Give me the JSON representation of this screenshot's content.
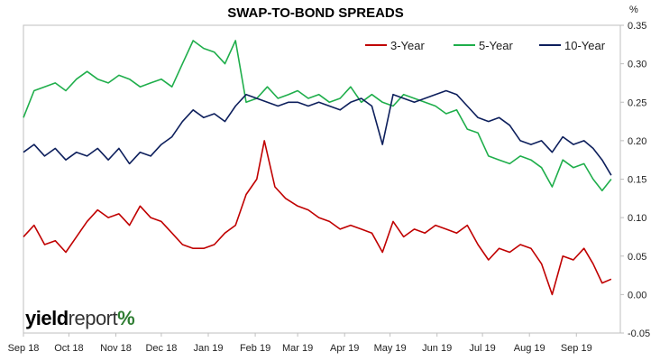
{
  "chart_data": {
    "type": "line",
    "title": "SWAP-TO-BOND SPREADS",
    "y_unit": "%",
    "ylim": [
      -0.05,
      0.35
    ],
    "yticks": [
      "0.35",
      "0.30",
      "0.25",
      "0.20",
      "0.15",
      "0.10",
      "0.05",
      "0.00",
      "-0.05"
    ],
    "xlim": [
      "2018-09-01",
      "2019-09-30"
    ],
    "xticks": [
      {
        "date": "2018-09-01",
        "label": "Sep 18"
      },
      {
        "date": "2018-10-01",
        "label": "Oct 18"
      },
      {
        "date": "2018-11-01",
        "label": "Nov 18"
      },
      {
        "date": "2018-12-01",
        "label": "Dec 18"
      },
      {
        "date": "2019-01-01",
        "label": "Jan 19"
      },
      {
        "date": "2019-02-01",
        "label": "Feb 19"
      },
      {
        "date": "2019-03-01",
        "label": "Mar 19"
      },
      {
        "date": "2019-04-01",
        "label": "Apr 19"
      },
      {
        "date": "2019-05-01",
        "label": "May 19"
      },
      {
        "date": "2019-06-01",
        "label": "Jun 19"
      },
      {
        "date": "2019-07-01",
        "label": "Jul 19"
      },
      {
        "date": "2019-08-01",
        "label": "Aug 19"
      },
      {
        "date": "2019-09-01",
        "label": "Sep 19"
      }
    ],
    "grid": false,
    "legend": "top-right",
    "series": [
      {
        "name": "3-Year",
        "color": "#c00000",
        "points": [
          [
            "2018-09-01",
            0.075
          ],
          [
            "2018-09-08",
            0.09
          ],
          [
            "2018-09-15",
            0.065
          ],
          [
            "2018-09-22",
            0.07
          ],
          [
            "2018-09-29",
            0.055
          ],
          [
            "2018-10-06",
            0.075
          ],
          [
            "2018-10-13",
            0.095
          ],
          [
            "2018-10-20",
            0.11
          ],
          [
            "2018-10-27",
            0.1
          ],
          [
            "2018-11-03",
            0.105
          ],
          [
            "2018-11-10",
            0.09
          ],
          [
            "2018-11-17",
            0.115
          ],
          [
            "2018-11-24",
            0.1
          ],
          [
            "2018-12-01",
            0.095
          ],
          [
            "2018-12-08",
            0.08
          ],
          [
            "2018-12-15",
            0.065
          ],
          [
            "2018-12-22",
            0.06
          ],
          [
            "2018-12-29",
            0.06
          ],
          [
            "2019-01-05",
            0.065
          ],
          [
            "2019-01-12",
            0.08
          ],
          [
            "2019-01-19",
            0.09
          ],
          [
            "2019-01-26",
            0.13
          ],
          [
            "2019-02-02",
            0.15
          ],
          [
            "2019-02-07",
            0.2
          ],
          [
            "2019-02-14",
            0.14
          ],
          [
            "2019-02-21",
            0.125
          ],
          [
            "2019-03-01",
            0.115
          ],
          [
            "2019-03-08",
            0.11
          ],
          [
            "2019-03-15",
            0.1
          ],
          [
            "2019-03-22",
            0.095
          ],
          [
            "2019-03-29",
            0.085
          ],
          [
            "2019-04-05",
            0.09
          ],
          [
            "2019-04-12",
            0.085
          ],
          [
            "2019-04-19",
            0.08
          ],
          [
            "2019-04-26",
            0.055
          ],
          [
            "2019-05-03",
            0.095
          ],
          [
            "2019-05-10",
            0.075
          ],
          [
            "2019-05-17",
            0.085
          ],
          [
            "2019-05-24",
            0.08
          ],
          [
            "2019-05-31",
            0.09
          ],
          [
            "2019-06-07",
            0.085
          ],
          [
            "2019-06-14",
            0.08
          ],
          [
            "2019-06-21",
            0.09
          ],
          [
            "2019-06-28",
            0.065
          ],
          [
            "2019-07-05",
            0.045
          ],
          [
            "2019-07-12",
            0.06
          ],
          [
            "2019-07-19",
            0.055
          ],
          [
            "2019-07-26",
            0.065
          ],
          [
            "2019-08-02",
            0.06
          ],
          [
            "2019-08-09",
            0.04
          ],
          [
            "2019-08-16",
            0.0
          ],
          [
            "2019-08-23",
            0.05
          ],
          [
            "2019-08-30",
            0.045
          ],
          [
            "2019-09-06",
            0.06
          ],
          [
            "2019-09-12",
            0.04
          ],
          [
            "2019-09-18",
            0.015
          ],
          [
            "2019-09-24",
            0.02
          ]
        ]
      },
      {
        "name": "5-Year",
        "color": "#1fae4b",
        "points": [
          [
            "2018-09-01",
            0.23
          ],
          [
            "2018-09-08",
            0.265
          ],
          [
            "2018-09-15",
            0.27
          ],
          [
            "2018-09-22",
            0.275
          ],
          [
            "2018-09-29",
            0.265
          ],
          [
            "2018-10-06",
            0.28
          ],
          [
            "2018-10-13",
            0.29
          ],
          [
            "2018-10-20",
            0.28
          ],
          [
            "2018-10-27",
            0.275
          ],
          [
            "2018-11-03",
            0.285
          ],
          [
            "2018-11-10",
            0.28
          ],
          [
            "2018-11-17",
            0.27
          ],
          [
            "2018-11-24",
            0.275
          ],
          [
            "2018-12-01",
            0.28
          ],
          [
            "2018-12-08",
            0.27
          ],
          [
            "2018-12-15",
            0.3
          ],
          [
            "2018-12-22",
            0.33
          ],
          [
            "2018-12-29",
            0.32
          ],
          [
            "2019-01-05",
            0.315
          ],
          [
            "2019-01-12",
            0.3
          ],
          [
            "2019-01-19",
            0.33
          ],
          [
            "2019-01-26",
            0.25
          ],
          [
            "2019-02-02",
            0.255
          ],
          [
            "2019-02-09",
            0.27
          ],
          [
            "2019-02-16",
            0.255
          ],
          [
            "2019-02-23",
            0.26
          ],
          [
            "2019-03-01",
            0.265
          ],
          [
            "2019-03-08",
            0.255
          ],
          [
            "2019-03-15",
            0.26
          ],
          [
            "2019-03-22",
            0.25
          ],
          [
            "2019-03-29",
            0.255
          ],
          [
            "2019-04-05",
            0.27
          ],
          [
            "2019-04-12",
            0.25
          ],
          [
            "2019-04-19",
            0.26
          ],
          [
            "2019-04-26",
            0.25
          ],
          [
            "2019-05-03",
            0.245
          ],
          [
            "2019-05-10",
            0.26
          ],
          [
            "2019-05-17",
            0.255
          ],
          [
            "2019-05-24",
            0.25
          ],
          [
            "2019-05-31",
            0.245
          ],
          [
            "2019-06-07",
            0.235
          ],
          [
            "2019-06-14",
            0.24
          ],
          [
            "2019-06-21",
            0.215
          ],
          [
            "2019-06-28",
            0.21
          ],
          [
            "2019-07-05",
            0.18
          ],
          [
            "2019-07-12",
            0.175
          ],
          [
            "2019-07-19",
            0.17
          ],
          [
            "2019-07-26",
            0.18
          ],
          [
            "2019-08-02",
            0.175
          ],
          [
            "2019-08-09",
            0.165
          ],
          [
            "2019-08-16",
            0.14
          ],
          [
            "2019-08-23",
            0.175
          ],
          [
            "2019-08-30",
            0.165
          ],
          [
            "2019-09-06",
            0.17
          ],
          [
            "2019-09-12",
            0.15
          ],
          [
            "2019-09-18",
            0.135
          ],
          [
            "2019-09-24",
            0.15
          ]
        ]
      },
      {
        "name": "10-Year",
        "color": "#0d1f5c",
        "points": [
          [
            "2018-09-01",
            0.185
          ],
          [
            "2018-09-08",
            0.195
          ],
          [
            "2018-09-15",
            0.18
          ],
          [
            "2018-09-22",
            0.19
          ],
          [
            "2018-09-29",
            0.175
          ],
          [
            "2018-10-06",
            0.185
          ],
          [
            "2018-10-13",
            0.18
          ],
          [
            "2018-10-20",
            0.19
          ],
          [
            "2018-10-27",
            0.175
          ],
          [
            "2018-11-03",
            0.19
          ],
          [
            "2018-11-10",
            0.17
          ],
          [
            "2018-11-17",
            0.185
          ],
          [
            "2018-11-24",
            0.18
          ],
          [
            "2018-12-01",
            0.195
          ],
          [
            "2018-12-08",
            0.205
          ],
          [
            "2018-12-15",
            0.225
          ],
          [
            "2018-12-22",
            0.24
          ],
          [
            "2018-12-29",
            0.23
          ],
          [
            "2019-01-05",
            0.235
          ],
          [
            "2019-01-12",
            0.225
          ],
          [
            "2019-01-19",
            0.245
          ],
          [
            "2019-01-26",
            0.26
          ],
          [
            "2019-02-02",
            0.255
          ],
          [
            "2019-02-09",
            0.25
          ],
          [
            "2019-02-16",
            0.245
          ],
          [
            "2019-02-23",
            0.25
          ],
          [
            "2019-03-01",
            0.25
          ],
          [
            "2019-03-08",
            0.245
          ],
          [
            "2019-03-15",
            0.25
          ],
          [
            "2019-03-22",
            0.245
          ],
          [
            "2019-03-29",
            0.24
          ],
          [
            "2019-04-05",
            0.25
          ],
          [
            "2019-04-12",
            0.255
          ],
          [
            "2019-04-19",
            0.245
          ],
          [
            "2019-04-26",
            0.195
          ],
          [
            "2019-05-03",
            0.26
          ],
          [
            "2019-05-10",
            0.255
          ],
          [
            "2019-05-17",
            0.25
          ],
          [
            "2019-05-24",
            0.255
          ],
          [
            "2019-05-31",
            0.26
          ],
          [
            "2019-06-07",
            0.265
          ],
          [
            "2019-06-14",
            0.26
          ],
          [
            "2019-06-21",
            0.245
          ],
          [
            "2019-06-28",
            0.23
          ],
          [
            "2019-07-05",
            0.225
          ],
          [
            "2019-07-12",
            0.23
          ],
          [
            "2019-07-19",
            0.22
          ],
          [
            "2019-07-26",
            0.2
          ],
          [
            "2019-08-02",
            0.195
          ],
          [
            "2019-08-09",
            0.2
          ],
          [
            "2019-08-16",
            0.185
          ],
          [
            "2019-08-23",
            0.205
          ],
          [
            "2019-08-30",
            0.195
          ],
          [
            "2019-09-06",
            0.2
          ],
          [
            "2019-09-12",
            0.19
          ],
          [
            "2019-09-18",
            0.175
          ],
          [
            "2019-09-24",
            0.155
          ]
        ]
      }
    ]
  },
  "branding": {
    "logo_part1": "yield",
    "logo_part2": "report",
    "logo_mark": "%"
  }
}
